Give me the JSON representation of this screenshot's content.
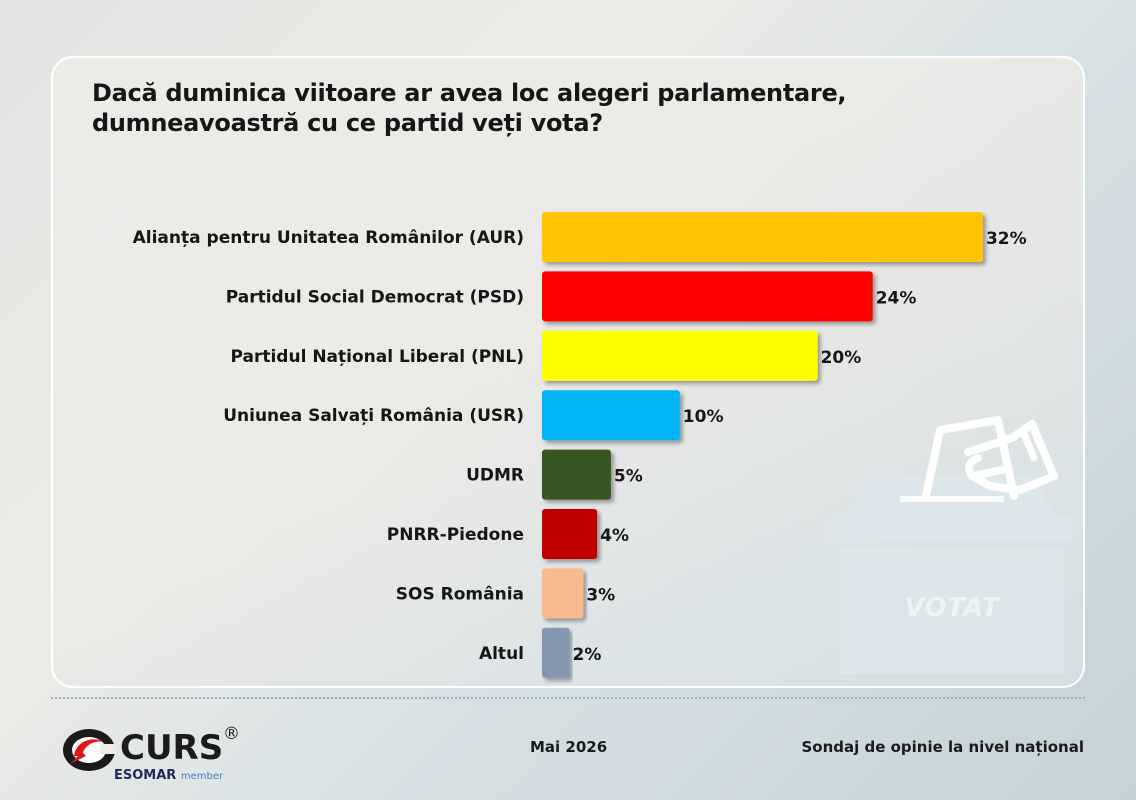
{
  "title_lines": [
    "Dacă duminica viitoare ar avea loc alegeri parlamentare,",
    "dumneavoastră cu ce partid veți vota?"
  ],
  "chart_data": {
    "type": "bar",
    "orientation": "horizontal",
    "categories": [
      "Alianța pentru Unitatea Românilor (AUR)",
      "Partidul Social Democrat (PSD)",
      "Partidul Național Liberal (PNL)",
      "Uniunea Salvați România (USR)",
      "UDMR",
      "PNRR-Piedone",
      "SOS România",
      "Altul"
    ],
    "values": [
      32,
      24,
      20,
      10,
      5,
      4,
      3,
      2
    ],
    "value_labels": [
      "32%",
      "24%",
      "20%",
      "10%",
      "5%",
      "4%",
      "3%",
      "2%"
    ],
    "bar_colors": [
      "#FFC400",
      "#FF0000",
      "#FFFF00",
      "#00B5F5",
      "#375623",
      "#C00000",
      "#F8B98F",
      "#8496B0"
    ],
    "unit": "%",
    "grid": false,
    "legend": "none"
  },
  "ballot": {
    "label": "VOTAT",
    "icon": "ballot-box-icon",
    "color": "#dce6ec"
  },
  "footer": {
    "logo_text": "CURS",
    "logo_registered": "®",
    "esomar": "ESOMAR",
    "esomar_member": "member",
    "date": "Mai 2026",
    "source": "Sondaj de opinie la nivel național"
  }
}
